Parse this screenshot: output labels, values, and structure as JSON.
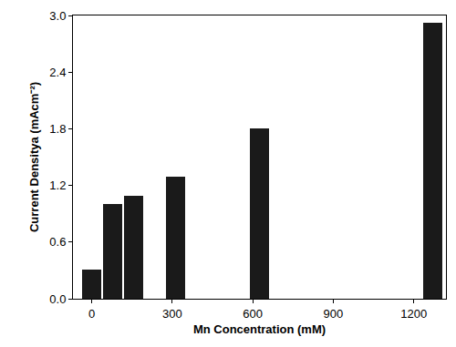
{
  "chart_data": {
    "type": "bar",
    "x_label": "Mn Concentration (mM)",
    "y_label": "Current Densitya (mAcm⁻²)",
    "x": [
      0,
      78,
      156,
      312,
      625,
      1270
    ],
    "values": [
      0.31,
      1.0,
      1.09,
      1.29,
      1.8,
      2.92
    ],
    "color": "#1a1a1a",
    "xlim": [
      -70,
      1320
    ],
    "xticks": [
      0,
      300,
      600,
      900,
      1200
    ],
    "ylim": [
      0,
      3.0
    ],
    "yticks": [
      {
        "value": 0,
        "label": "0.0"
      },
      0.6,
      1.2,
      1.8,
      2.4,
      {
        "value": 3.0,
        "label": "3.0"
      }
    ],
    "grid": false
  }
}
